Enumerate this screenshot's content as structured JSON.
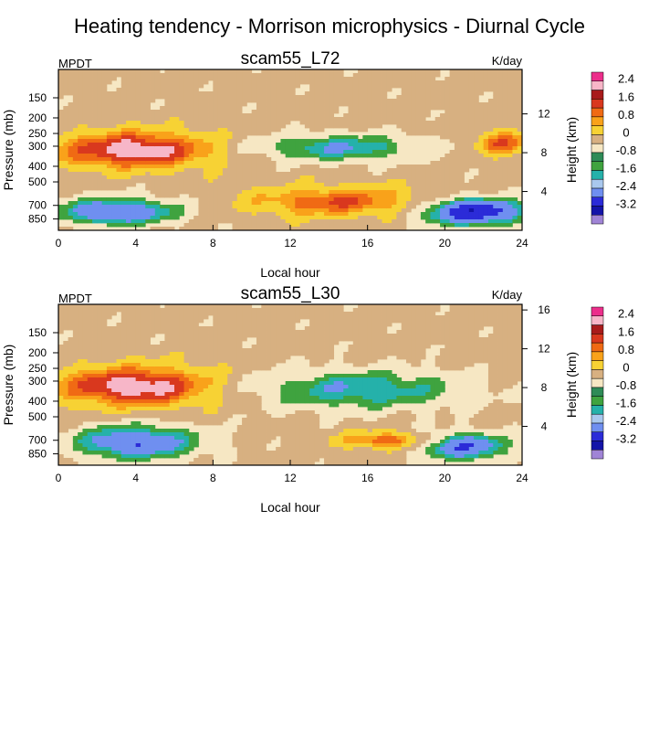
{
  "figure": {
    "title": "Heating tendency - Morrison microphysics - Diurnal Cycle"
  },
  "colors": {
    "levels": [
      "#a084d6",
      "#1414a8",
      "#2b2bd8",
      "#6f8ff0",
      "#a9c8ee",
      "#25b1aa",
      "#3fa33f",
      "#2e8b57",
      "#f6e7c3",
      "#d7b081",
      "#f7d234",
      "#f9a21a",
      "#f06a14",
      "#d9381e",
      "#a81b1b",
      "#f7b6c8",
      "#ec2e8b"
    ],
    "background": "#f6e7c3"
  },
  "colorbar": {
    "labels": [
      "2.4",
      "1.6",
      "0.8",
      "0",
      "-0.8",
      "-1.6",
      "-2.4",
      "-3.2"
    ]
  },
  "panels": [
    {
      "id": "L72",
      "title": "scam55_L72",
      "left_string": "MPDT",
      "right_string": "K/day",
      "xlabel": "Local hour",
      "ylabel": "Pressure (mb)",
      "right_label": "Height (km)",
      "x_ticks": [
        "0",
        "4",
        "8",
        "12",
        "16",
        "20",
        "24"
      ],
      "y_ticks": [
        "150",
        "200",
        "250",
        "300",
        "400",
        "500",
        "700",
        "850"
      ],
      "height_ticks": [
        "4",
        "8",
        "12"
      ]
    },
    {
      "id": "L30",
      "title": "scam55_L30",
      "left_string": "MPDT",
      "right_string": "K/day",
      "xlabel": "Local hour",
      "ylabel": "Pressure (mb)",
      "right_label": "Height (km)",
      "x_ticks": [
        "0",
        "4",
        "8",
        "12",
        "16",
        "20",
        "24"
      ],
      "y_ticks": [
        "150",
        "200",
        "250",
        "300",
        "400",
        "500",
        "700",
        "850"
      ],
      "height_ticks": [
        "4",
        "8",
        "12",
        "16"
      ]
    }
  ],
  "chart_data": [
    {
      "type": "heatmap",
      "title": "scam55_L72",
      "xlabel": "Local hour",
      "ylabel": "Pressure (mb)",
      "xlim": [
        0,
        24
      ],
      "x_ticks": [
        0,
        4,
        8,
        12,
        16,
        20,
        24
      ],
      "y_ticks": [
        150,
        200,
        250,
        300,
        400,
        500,
        700,
        850
      ],
      "y_scale": "log",
      "units": "K/day",
      "contour_levels": [
        -3.2,
        -2.4,
        -1.6,
        -0.8,
        0,
        0.8,
        1.6,
        2.4
      ],
      "regions": [
        {
          "feature": "upper-level heating",
          "hours": [
            0,
            8
          ],
          "pressure": [
            250,
            400
          ],
          "peak": 2.4
        },
        {
          "feature": "upper-level cooling",
          "hours": [
            10,
            19
          ],
          "pressure": [
            260,
            360
          ],
          "peak": -1.6
        },
        {
          "feature": "lower-level heating",
          "hours": [
            10,
            19
          ],
          "pressure": [
            550,
            800
          ],
          "peak": 1.6
        },
        {
          "feature": "low-level cooling",
          "hours": [
            0,
            6
          ],
          "pressure": [
            650,
            900
          ],
          "peak": -2.4
        },
        {
          "feature": "low-level cooling",
          "hours": [
            19,
            24
          ],
          "pressure": [
            650,
            900
          ],
          "peak": -3.2
        },
        {
          "feature": "upper-level heating",
          "hours": [
            22,
            24
          ],
          "pressure": [
            250,
            330
          ],
          "peak": 1.6
        }
      ]
    },
    {
      "type": "heatmap",
      "title": "scam55_L30",
      "xlabel": "Local hour",
      "ylabel": "Pressure (mb)",
      "xlim": [
        0,
        24
      ],
      "x_ticks": [
        0,
        4,
        8,
        12,
        16,
        20,
        24
      ],
      "y_ticks": [
        150,
        200,
        250,
        300,
        400,
        500,
        700,
        850
      ],
      "y_scale": "log",
      "units": "K/day",
      "contour_levels": [
        -3.2,
        -2.4,
        -1.6,
        -0.8,
        0,
        0.8,
        1.6,
        2.4
      ],
      "regions": [
        {
          "feature": "upper-level heating",
          "hours": [
            0,
            8
          ],
          "pressure": [
            250,
            420
          ],
          "peak": 2.4
        },
        {
          "feature": "upper-level cooling",
          "hours": [
            10,
            21
          ],
          "pressure": [
            260,
            440
          ],
          "peak": -1.6
        },
        {
          "feature": "lower-level heating",
          "hours": [
            15,
            19
          ],
          "pressure": [
            650,
            760
          ],
          "peak": 1.6
        },
        {
          "feature": "low-level cooling",
          "hours": [
            1,
            7
          ],
          "pressure": [
            580,
            900
          ],
          "peak": -2.4
        },
        {
          "feature": "low-level cooling",
          "hours": [
            19,
            23
          ],
          "pressure": [
            650,
            900
          ],
          "peak": -2.4
        }
      ]
    }
  ]
}
